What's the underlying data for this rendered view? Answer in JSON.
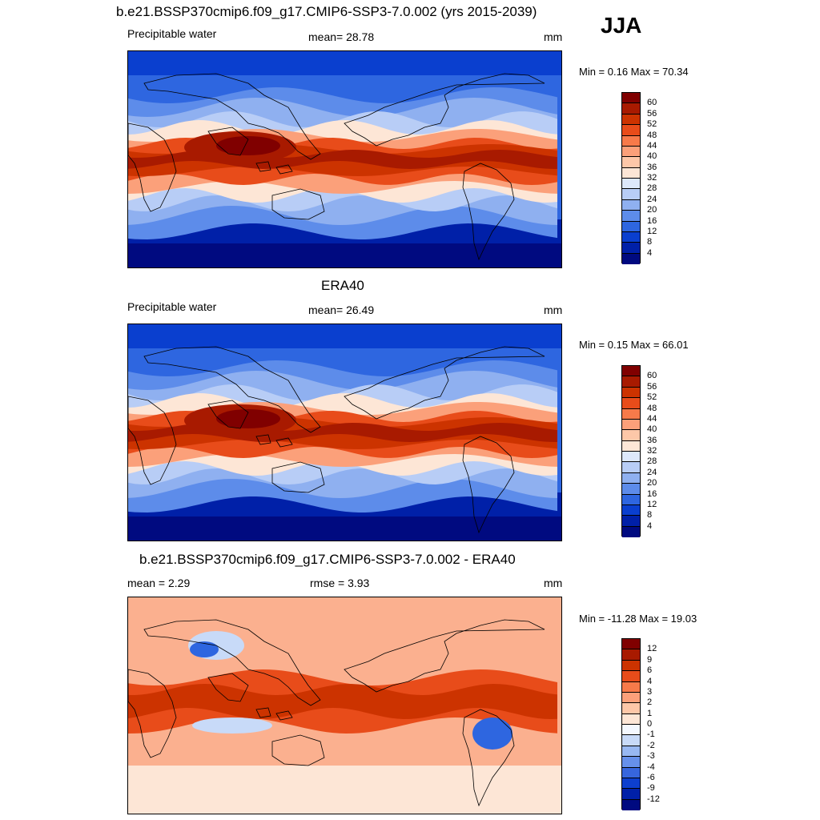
{
  "season": "JJA",
  "panels": [
    {
      "title": "b.e21.BSSP370cmip6.f09_g17.CMIP6-SSP3-7.0.002 (yrs 2015-2039)",
      "left_label": "Precipitable water",
      "center_label": "mean=  28.78",
      "units": "mm",
      "minmax": "Min =   0.16 Max =  70.34"
    },
    {
      "title": "ERA40",
      "left_label": "Precipitable water",
      "center_label": "mean=  26.49",
      "units": "mm",
      "minmax": "Min =   0.15 Max =  66.01"
    },
    {
      "title": "b.e21.BSSP370cmip6.f09_g17.CMIP6-SSP3-7.0.002 - ERA40",
      "left_label": "mean =   2.29",
      "center_label": "rmse =   3.93",
      "units": "mm",
      "minmax": "Min = -11.28 Max =  19.03"
    }
  ],
  "colorbars": {
    "field": {
      "labels": [
        "60",
        "56",
        "52",
        "48",
        "44",
        "40",
        "36",
        "32",
        "28",
        "24",
        "20",
        "16",
        "12",
        "8",
        "4"
      ],
      "colors": [
        "#800000",
        "#a81a00",
        "#cc3300",
        "#e84c1a",
        "#f77a4a",
        "#fba07a",
        "#fdc7a8",
        "#fde6d6",
        "#dde8fb",
        "#b8cdf6",
        "#8fb0f0",
        "#5d8cea",
        "#2e66e0",
        "#0a3fcf",
        "#0020a8",
        "#000a80"
      ]
    },
    "diff": {
      "labels": [
        "12",
        "9",
        "6",
        "4",
        "3",
        "2",
        "1",
        "0",
        "-1",
        "-2",
        "-3",
        "-4",
        "-6",
        "-9",
        "-12"
      ],
      "colors": [
        "#800000",
        "#a81a00",
        "#cc3300",
        "#e84c1a",
        "#f77a4a",
        "#fba07a",
        "#fdc7a8",
        "#fde6d6",
        "#f4f8ff",
        "#c8daf8",
        "#98b8f2",
        "#6690ea",
        "#3766dd",
        "#0d3fce",
        "#0020a8",
        "#000a80"
      ]
    }
  },
  "map_colors": {
    "field_bands": [
      "#000a80",
      "#0020a8",
      "#0a3fcf",
      "#2e66e0",
      "#5d8cea",
      "#8fb0f0",
      "#b8cdf6",
      "#fde6d6",
      "#fba07a",
      "#e84c1a",
      "#cc3300",
      "#a81a00",
      "#800000"
    ],
    "diff_base": "#fbb08f",
    "diff_warm": "#e84c1a",
    "diff_hot": "#cc3300",
    "diff_pale": "#fde6d6",
    "diff_blue": "#2e66e0",
    "diff_lightblue": "#c8daf8"
  }
}
